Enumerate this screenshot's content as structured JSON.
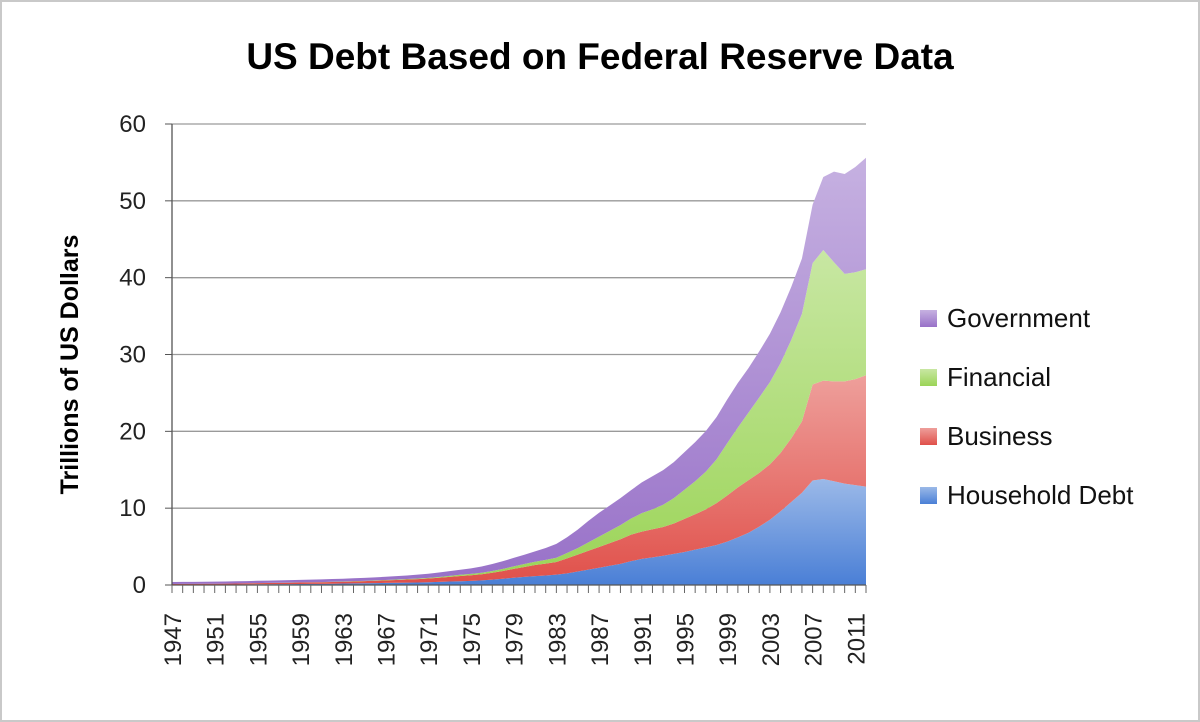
{
  "chart_data": {
    "type": "area",
    "stacked": true,
    "title": "US Debt Based on Federal Reserve Data",
    "xlabel": "",
    "ylabel": "Trillions of US Dollars",
    "ylim": [
      0,
      60
    ],
    "yticks": [
      0,
      10,
      20,
      30,
      40,
      50,
      60
    ],
    "xtick_labels": [
      "1947",
      "1951",
      "1955",
      "1959",
      "1963",
      "1967",
      "1971",
      "1975",
      "1979",
      "1983",
      "1987",
      "1991",
      "1995",
      "1999",
      "2003",
      "2007",
      "2011"
    ],
    "grid": "horizontal",
    "legend_position": "right",
    "x": [
      1947,
      1948,
      1949,
      1950,
      1951,
      1952,
      1953,
      1954,
      1955,
      1956,
      1957,
      1958,
      1959,
      1960,
      1961,
      1962,
      1963,
      1964,
      1965,
      1966,
      1967,
      1968,
      1969,
      1970,
      1971,
      1972,
      1973,
      1974,
      1975,
      1976,
      1977,
      1978,
      1979,
      1980,
      1981,
      1982,
      1983,
      1984,
      1985,
      1986,
      1987,
      1988,
      1989,
      1990,
      1991,
      1992,
      1993,
      1994,
      1995,
      1996,
      1997,
      1998,
      1999,
      2000,
      2001,
      2002,
      2003,
      2004,
      2005,
      2006,
      2007,
      2008,
      2009,
      2010,
      2011,
      2012
    ],
    "series": [
      {
        "name": "Household Debt",
        "color": "#4a7fd6",
        "values": [
          0.03,
          0.04,
          0.04,
          0.05,
          0.05,
          0.06,
          0.07,
          0.08,
          0.09,
          0.1,
          0.11,
          0.12,
          0.13,
          0.14,
          0.15,
          0.17,
          0.19,
          0.21,
          0.23,
          0.25,
          0.27,
          0.29,
          0.31,
          0.33,
          0.36,
          0.4,
          0.45,
          0.49,
          0.53,
          0.6,
          0.7,
          0.82,
          0.95,
          1.05,
          1.15,
          1.23,
          1.35,
          1.52,
          1.75,
          2.0,
          2.25,
          2.5,
          2.75,
          3.1,
          3.4,
          3.6,
          3.8,
          4.05,
          4.3,
          4.6,
          4.9,
          5.2,
          5.65,
          6.2,
          6.8,
          7.6,
          8.5,
          9.6,
          10.8,
          12.0,
          13.6,
          13.8,
          13.5,
          13.2,
          13.0,
          12.8
        ]
      },
      {
        "name": "Business",
        "color": "#e0504a",
        "values": [
          0.1,
          0.1,
          0.1,
          0.11,
          0.12,
          0.12,
          0.13,
          0.14,
          0.15,
          0.16,
          0.17,
          0.18,
          0.19,
          0.2,
          0.21,
          0.22,
          0.23,
          0.25,
          0.27,
          0.3,
          0.33,
          0.36,
          0.4,
          0.44,
          0.48,
          0.54,
          0.6,
          0.68,
          0.74,
          0.8,
          0.9,
          1.0,
          1.15,
          1.3,
          1.45,
          1.55,
          1.65,
          1.95,
          2.2,
          2.45,
          2.7,
          2.95,
          3.2,
          3.45,
          3.55,
          3.65,
          3.75,
          3.95,
          4.3,
          4.6,
          4.95,
          5.45,
          6.0,
          6.5,
          6.85,
          7.0,
          7.2,
          7.6,
          8.3,
          9.3,
          12.5,
          12.8,
          13.0,
          13.3,
          13.8,
          14.5
        ]
      },
      {
        "name": "Financial",
        "color": "#9bd457",
        "values": [
          0.0,
          0.0,
          0.0,
          0.0,
          0.0,
          0.0,
          0.0,
          0.0,
          0.01,
          0.01,
          0.01,
          0.01,
          0.02,
          0.02,
          0.02,
          0.03,
          0.03,
          0.04,
          0.04,
          0.05,
          0.05,
          0.06,
          0.07,
          0.08,
          0.09,
          0.1,
          0.13,
          0.16,
          0.18,
          0.2,
          0.23,
          0.28,
          0.33,
          0.38,
          0.43,
          0.49,
          0.55,
          0.7,
          0.85,
          1.1,
          1.35,
          1.6,
          1.85,
          2.1,
          2.4,
          2.6,
          2.9,
          3.3,
          3.8,
          4.3,
          4.9,
          5.7,
          6.8,
          7.8,
          8.8,
          9.8,
          10.7,
          11.7,
          12.8,
          14.0,
          15.8,
          17.0,
          15.5,
          14.0,
          13.9,
          13.8
        ]
      },
      {
        "name": "Government",
        "color": "#9871c8",
        "values": [
          0.26,
          0.26,
          0.27,
          0.27,
          0.27,
          0.28,
          0.29,
          0.29,
          0.3,
          0.3,
          0.31,
          0.32,
          0.33,
          0.34,
          0.35,
          0.36,
          0.37,
          0.38,
          0.39,
          0.4,
          0.42,
          0.44,
          0.46,
          0.5,
          0.54,
          0.58,
          0.62,
          0.66,
          0.72,
          0.8,
          0.9,
          1.0,
          1.1,
          1.2,
          1.35,
          1.55,
          1.8,
          2.05,
          2.4,
          2.8,
          3.1,
          3.3,
          3.5,
          3.7,
          4.0,
          4.3,
          4.5,
          4.7,
          4.9,
          5.1,
          5.3,
          5.5,
          5.7,
          5.8,
          5.8,
          6.0,
          6.3,
          6.6,
          6.9,
          7.2,
          7.6,
          9.5,
          11.8,
          13.0,
          13.7,
          14.5
        ]
      }
    ]
  }
}
